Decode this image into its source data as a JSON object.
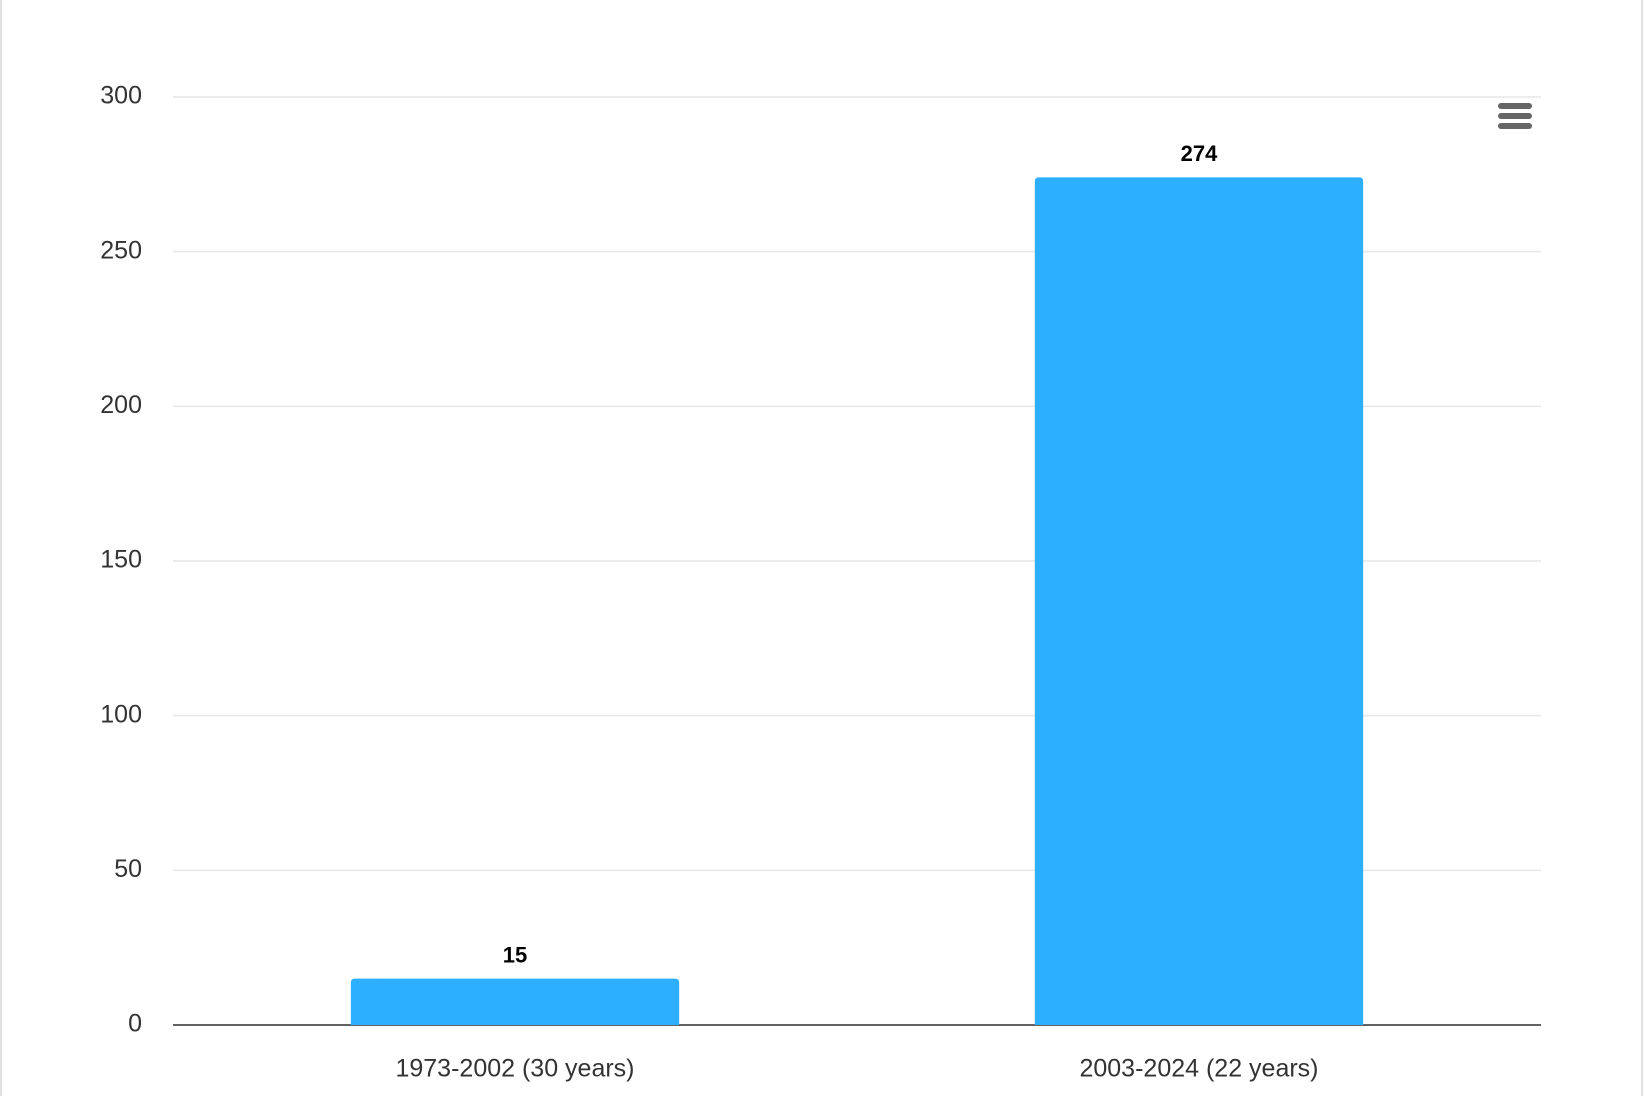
{
  "chart_data": {
    "type": "bar",
    "categories": [
      "1973-2002 (30 years)",
      "2003-2024 (22 years)"
    ],
    "values": [
      15,
      274
    ],
    "color": "#2caffe",
    "ylim": [
      0,
      300
    ],
    "yticks": [
      0,
      50,
      100,
      150,
      200,
      250,
      300
    ],
    "grid": true
  }
}
